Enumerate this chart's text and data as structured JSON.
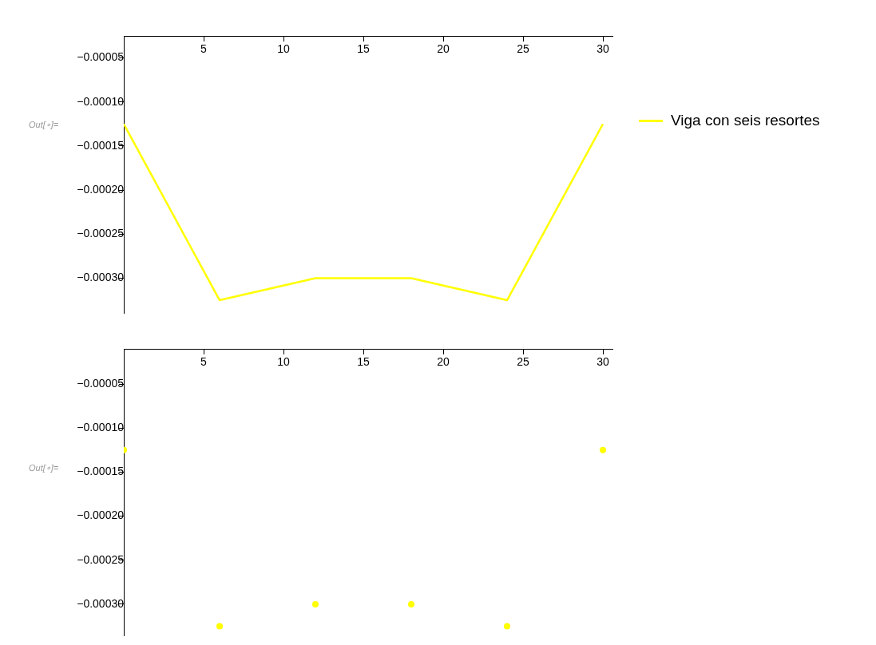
{
  "chart_data": [
    {
      "type": "line",
      "x": [
        0,
        6,
        12,
        18,
        24,
        30
      ],
      "series": [
        {
          "name": "Viga con seis resortes",
          "color": "#ffff00",
          "values": [
            -0.000125,
            -0.000325,
            -0.0003,
            -0.0003,
            -0.000325,
            -0.000125
          ]
        }
      ],
      "xlim": [
        0,
        30.6
      ],
      "ylim": [
        -0.00034,
        -2.5e-05
      ],
      "xticks": [
        5,
        10,
        15,
        20,
        25,
        30
      ],
      "yticks": [
        {
          "value": -5e-05,
          "label": "−0.00005"
        },
        {
          "value": -0.0001,
          "label": "−0.00010"
        },
        {
          "value": -0.00015,
          "label": "−0.00015"
        },
        {
          "value": -0.0002,
          "label": "−0.00020"
        },
        {
          "value": -0.00025,
          "label": "−0.00025"
        },
        {
          "value": -0.0003,
          "label": "−0.00030"
        }
      ],
      "grid": false,
      "legend": "right",
      "marker": "none",
      "line_style": "solid",
      "annotations": [
        "Out[∘]="
      ]
    },
    {
      "type": "scatter",
      "x": [
        0,
        6,
        12,
        18,
        24,
        30
      ],
      "series": [
        {
          "color": "#ffff00",
          "values": [
            -0.000125,
            -0.000325,
            -0.0003,
            -0.0003,
            -0.000325,
            -0.000125
          ]
        }
      ],
      "xlim": [
        0,
        30.6
      ],
      "ylim": [
        -0.000336,
        -1e-05
      ],
      "xticks": [
        5,
        10,
        15,
        20,
        25,
        30
      ],
      "yticks": [
        {
          "value": -5e-05,
          "label": "−0.00005"
        },
        {
          "value": -0.0001,
          "label": "−0.00010"
        },
        {
          "value": -0.00015,
          "label": "−0.00015"
        },
        {
          "value": -0.0002,
          "label": "−0.00020"
        },
        {
          "value": -0.00025,
          "label": "−0.00025"
        },
        {
          "value": -0.0003,
          "label": "−0.00030"
        }
      ],
      "grid": false,
      "marker": "circle",
      "annotations": [
        "Out[∘]="
      ]
    }
  ]
}
